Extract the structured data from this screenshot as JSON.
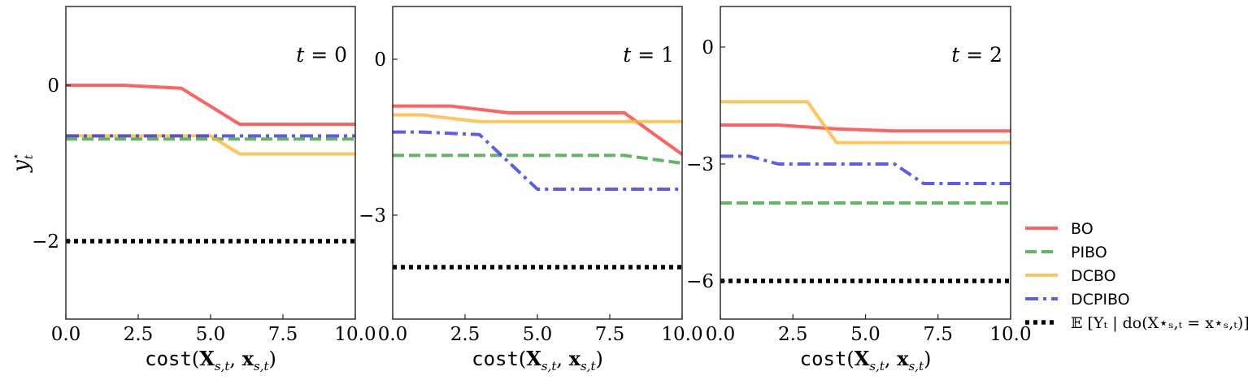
{
  "chart_data": [
    {
      "type": "line",
      "title": "t = 0",
      "xlabel": {
        "fn": "cost",
        "args": "(X_{s,t}, x_{s,t})"
      },
      "ylabel": "y*_t",
      "xlim": [
        0,
        10
      ],
      "ylim": [
        -3,
        1
      ],
      "xticks": [
        0,
        2.5,
        5,
        7.5,
        10
      ],
      "xtick_labels": [
        "0.0",
        "2.5",
        "5.0",
        "7.5",
        "10.0"
      ],
      "yticks": [
        0,
        -2
      ],
      "ytick_labels": [
        "0",
        "−2"
      ],
      "series": [
        {
          "name": "BO",
          "color": "#ff3b3b",
          "dash": "solid",
          "x": [
            0,
            2,
            4,
            6,
            10
          ],
          "y": [
            0,
            0,
            -0.04,
            -0.5,
            -0.5
          ]
        },
        {
          "name": "PIBO",
          "color": "#3aa53a",
          "dash": "dashed",
          "x": [
            0,
            10
          ],
          "y": [
            -0.69,
            -0.69
          ]
        },
        {
          "name": "DCBO",
          "color": "#ffb733",
          "dash": "solid",
          "x": [
            0,
            5,
            6,
            10
          ],
          "y": [
            -0.65,
            -0.65,
            -0.88,
            -0.88
          ]
        },
        {
          "name": "DCPIBO",
          "color": "#3333ee",
          "dash": "dashdot",
          "x": [
            0,
            10
          ],
          "y": [
            -0.65,
            -0.65
          ]
        },
        {
          "name": "E",
          "color": "#000000",
          "dash": "dotted",
          "x": [
            0,
            10
          ],
          "y": [
            -2,
            -2
          ]
        }
      ]
    },
    {
      "type": "line",
      "title": "t = 1",
      "xlabel": {
        "fn": "cost",
        "args": "(X_{s,t}, x_{s,t})"
      },
      "xlim": [
        0,
        10
      ],
      "ylim": [
        -5,
        1
      ],
      "xticks": [
        0,
        2.5,
        5,
        7.5,
        10
      ],
      "xtick_labels": [
        "0.0",
        "2.5",
        "5.0",
        "7.5",
        "10.0"
      ],
      "yticks": [
        0,
        -3
      ],
      "ytick_labels": [
        "0",
        "−3"
      ],
      "series": [
        {
          "name": "BO",
          "color": "#ff3b3b",
          "dash": "solid",
          "x": [
            0,
            2,
            4,
            8,
            10
          ],
          "y": [
            -0.9,
            -0.9,
            -1.03,
            -1.03,
            -1.83
          ]
        },
        {
          "name": "PIBO",
          "color": "#3aa53a",
          "dash": "dashed",
          "x": [
            0,
            8,
            10
          ],
          "y": [
            -1.85,
            -1.85,
            -2.0
          ]
        },
        {
          "name": "DCBO",
          "color": "#ffb733",
          "dash": "solid",
          "x": [
            0,
            1,
            3,
            10
          ],
          "y": [
            -1.07,
            -1.07,
            -1.2,
            -1.2
          ]
        },
        {
          "name": "DCPIBO",
          "color": "#3333ee",
          "dash": "dashdot",
          "x": [
            0,
            1,
            3,
            5,
            10
          ],
          "y": [
            -1.4,
            -1.4,
            -1.45,
            -2.5,
            -2.5
          ]
        },
        {
          "name": "E",
          "color": "#000000",
          "dash": "dotted",
          "x": [
            0,
            10
          ],
          "y": [
            -4.0,
            -4.0
          ]
        }
      ]
    },
    {
      "type": "line",
      "title": "t = 2",
      "xlabel": {
        "fn": "cost",
        "args": "(X_{s,t}, x_{s,t})"
      },
      "xlim": [
        0,
        10
      ],
      "ylim": [
        -7,
        1
      ],
      "xticks": [
        0,
        2.5,
        5,
        7.5,
        10
      ],
      "xtick_labels": [
        "0.0",
        "2.5",
        "5.0",
        "7.5",
        "10.0"
      ],
      "yticks": [
        0,
        -3,
        -6
      ],
      "ytick_labels": [
        "0",
        "−3",
        "−6"
      ],
      "series": [
        {
          "name": "BO",
          "color": "#ff3b3b",
          "dash": "solid",
          "x": [
            0,
            2,
            4,
            6,
            10
          ],
          "y": [
            -2.0,
            -2.0,
            -2.1,
            -2.15,
            -2.15
          ]
        },
        {
          "name": "PIBO",
          "color": "#3aa53a",
          "dash": "dashed",
          "x": [
            0,
            10
          ],
          "y": [
            -4.0,
            -4.0
          ]
        },
        {
          "name": "DCBO",
          "color": "#ffb733",
          "dash": "solid",
          "x": [
            0,
            3,
            4,
            10
          ],
          "y": [
            -1.4,
            -1.4,
            -2.45,
            -2.45
          ]
        },
        {
          "name": "DCPIBO",
          "color": "#3333ee",
          "dash": "dashdot",
          "x": [
            0,
            1,
            2,
            6,
            7,
            10
          ],
          "y": [
            -2.8,
            -2.8,
            -3.0,
            -3.0,
            -3.5,
            -3.5
          ]
        },
        {
          "name": "E",
          "color": "#000000",
          "dash": "dotted",
          "x": [
            0,
            10
          ],
          "y": [
            -6.0,
            -6.0
          ]
        }
      ]
    }
  ],
  "legend": {
    "placement": "right",
    "entries": [
      {
        "label": "BO",
        "color": "#ff3b3b",
        "dash": "solid"
      },
      {
        "label": "PIBO",
        "color": "#3aa53a",
        "dash": "dashed"
      },
      {
        "label": "DCBO",
        "color": "#ffb733",
        "dash": "solid"
      },
      {
        "label": "DCPIBO",
        "color": "#3333ee",
        "dash": "dashdot"
      },
      {
        "label": "𝔼 [Yₜ | do(X⋆ₛ,ₜ = x⋆ₛ,ₜ)]",
        "color": "#000000",
        "dash": "dotted"
      }
    ]
  }
}
